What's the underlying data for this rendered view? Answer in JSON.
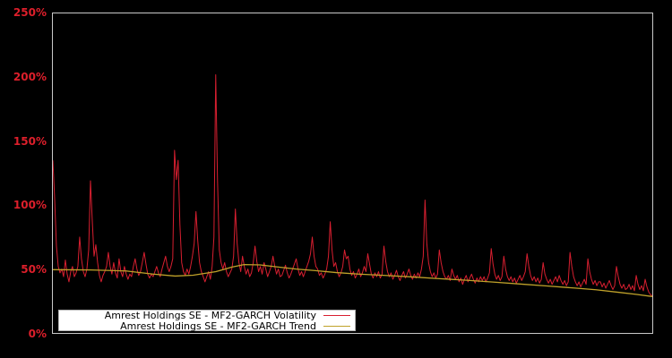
{
  "colors": {
    "background": "#000000",
    "axis_border": "#c9c9c9",
    "tick_label": "#dd1f2b",
    "volatility_line": "#d81f30",
    "trend_line": "#c0a22a",
    "legend_background": "#ffffff"
  },
  "legend": {
    "items": [
      {
        "label": "Amrest Holdings SE - MF2-GARCH Volatility",
        "color": "#d81f30"
      },
      {
        "label": "Amrest Holdings SE - MF2-GARCH Trend",
        "color": "#c0a22a"
      }
    ]
  },
  "chart_data": {
    "type": "line",
    "title": "",
    "xlabel": "",
    "ylabel": "",
    "ylim": [
      0,
      250
    ],
    "grid": false,
    "legend_position": "lower-left",
    "x_tick_labels": [],
    "yticks": [
      {
        "label": "0%",
        "value": 0
      },
      {
        "label": "50%",
        "value": 50
      },
      {
        "label": "100%",
        "value": 100
      },
      {
        "label": "150%",
        "value": 150
      },
      {
        "label": "200%",
        "value": 200
      },
      {
        "label": "250%",
        "value": 250
      }
    ],
    "unit": "percent",
    "series": [
      {
        "name": "Amrest Holdings SE - MF2-GARCH Volatility",
        "color": "#d81f30",
        "stroke_width": 1,
        "values": [
          135,
          105,
          68,
          52,
          47,
          50,
          44,
          57,
          46,
          40,
          48,
          52,
          44,
          47,
          52,
          75,
          58,
          48,
          44,
          50,
          65,
          119,
          88,
          60,
          69,
          55,
          45,
          40,
          45,
          48,
          52,
          63,
          52,
          46,
          55,
          47,
          43,
          58,
          48,
          44,
          52,
          46,
          42,
          46,
          44,
          52,
          58,
          50,
          45,
          48,
          55,
          63,
          54,
          46,
          43,
          46,
          44,
          48,
          52,
          47,
          44,
          50,
          55,
          60,
          52,
          48,
          52,
          58,
          143,
          120,
          135,
          85,
          55,
          48,
          45,
          50,
          46,
          52,
          60,
          70,
          95,
          72,
          55,
          48,
          44,
          40,
          44,
          48,
          42,
          52,
          75,
          202,
          120,
          65,
          55,
          50,
          55,
          48,
          44,
          47,
          50,
          60,
          97,
          70,
          55,
          48,
          60,
          52,
          46,
          50,
          44,
          47,
          55,
          68,
          56,
          48,
          52,
          46,
          55,
          50,
          44,
          48,
          52,
          60,
          52,
          46,
          50,
          44,
          45,
          49,
          53,
          47,
          43,
          46,
          50,
          54,
          58,
          50,
          45,
          48,
          44,
          48,
          52,
          56,
          62,
          75,
          60,
          52,
          50,
          45,
          47,
          43,
          46,
          50,
          60,
          87,
          65,
          52,
          55,
          48,
          44,
          47,
          52,
          65,
          58,
          60,
          50,
          45,
          48,
          43,
          46,
          50,
          44,
          47,
          52,
          48,
          62,
          54,
          46,
          43,
          47,
          44,
          48,
          43,
          46,
          68,
          56,
          48,
          44,
          47,
          42,
          45,
          49,
          44,
          41,
          45,
          48,
          43,
          46,
          50,
          45,
          42,
          46,
          43,
          47,
          44,
          50,
          60,
          104,
          70,
          55,
          48,
          44,
          47,
          43,
          46,
          65,
          55,
          48,
          44,
          42,
          45,
          41,
          50,
          45,
          42,
          45,
          40,
          43,
          38,
          42,
          45,
          40,
          43,
          46,
          42,
          39,
          43,
          40,
          44,
          41,
          44,
          40,
          43,
          47,
          66,
          54,
          46,
          42,
          45,
          41,
          44,
          60,
          50,
          44,
          41,
          44,
          40,
          43,
          39,
          42,
          45,
          41,
          44,
          48,
          62,
          52,
          45,
          41,
          44,
          40,
          43,
          39,
          42,
          55,
          46,
          42,
          39,
          42,
          38,
          41,
          44,
          40,
          45,
          41,
          38,
          41,
          37,
          40,
          63,
          52,
          44,
          40,
          37,
          40,
          36,
          39,
          42,
          38,
          58,
          48,
          42,
          38,
          41,
          37,
          40,
          40,
          36,
          39,
          35,
          38,
          41,
          37,
          34,
          37,
          52,
          44,
          38,
          35,
          38,
          34,
          35,
          38,
          34,
          37,
          33,
          45,
          38,
          34,
          37,
          33,
          42,
          36,
          32,
          30,
          29
        ]
      },
      {
        "name": "Amrest Holdings SE - MF2-GARCH Trend",
        "color": "#c0a22a",
        "stroke_width": 1.3,
        "anchors": [
          [
            0.0,
            49.5
          ],
          [
            0.063,
            49.3
          ],
          [
            0.122,
            48.5
          ],
          [
            0.167,
            46.0
          ],
          [
            0.204,
            44.5
          ],
          [
            0.234,
            45.2
          ],
          [
            0.272,
            48.0
          ],
          [
            0.299,
            51.5
          ],
          [
            0.319,
            53.5
          ],
          [
            0.346,
            53.2
          ],
          [
            0.376,
            51.5
          ],
          [
            0.406,
            50.0
          ],
          [
            0.436,
            48.8
          ],
          [
            0.473,
            47.2
          ],
          [
            0.51,
            46.0
          ],
          [
            0.555,
            45.0
          ],
          [
            0.6,
            43.8
          ],
          [
            0.645,
            42.5
          ],
          [
            0.69,
            41.2
          ],
          [
            0.734,
            39.8
          ],
          [
            0.779,
            38.3
          ],
          [
            0.824,
            36.8
          ],
          [
            0.869,
            35.2
          ],
          [
            0.906,
            33.8
          ],
          [
            0.943,
            31.8
          ],
          [
            0.973,
            30.2
          ],
          [
            1.0,
            28.5
          ]
        ]
      }
    ]
  }
}
